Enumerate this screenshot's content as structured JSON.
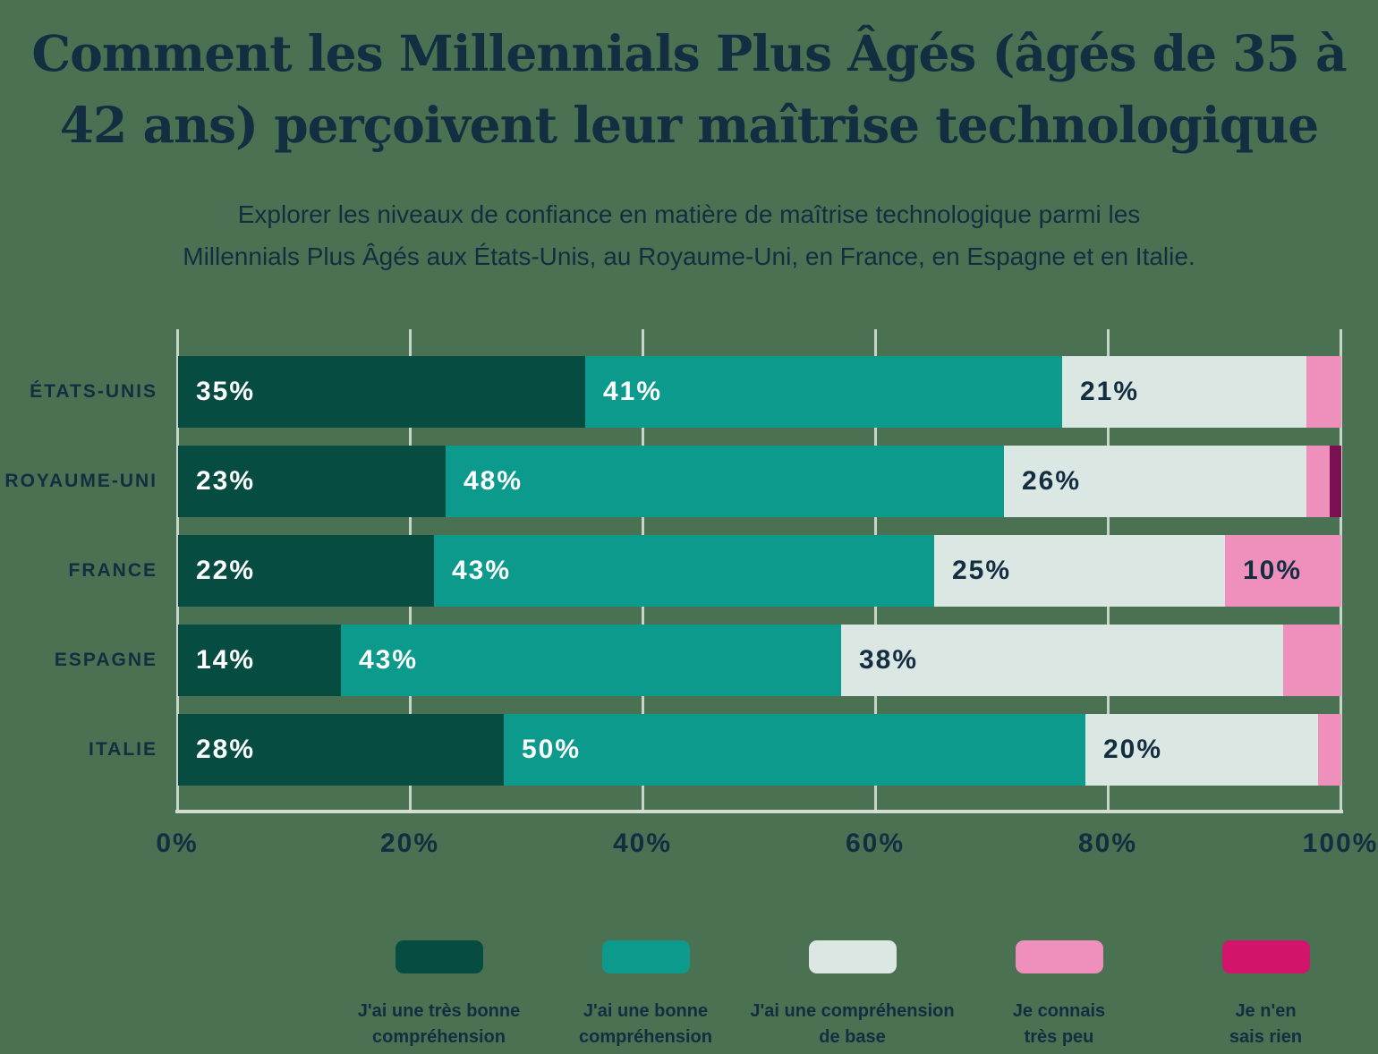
{
  "header": {
    "title_lines": [
      "Comment les Millennials Plus Âgés (âgés de 35 à",
      "42 ans) perçoivent leur maîtrise technologique"
    ],
    "subtitle_lines": [
      "Explorer les niveaux de confiance en matière de maîtrise technologique parmi les",
      "Millennials Plus Âgés aux États-Unis, au Royaume-Uni, en France, en Espagne et en Italie."
    ]
  },
  "colors": {
    "background": "#4a7152",
    "text_navy": "#122e40",
    "gridline": "#c9d3ca",
    "axis_baseline": "#d4ddd4",
    "bar_label_on_dark": "#ffffff",
    "uk_no_answer_bar_segment": "#7a1050"
  },
  "chart_data": {
    "type": "bar",
    "stacked": true,
    "orientation": "horizontal",
    "title": "Comment les Millennials Plus Âgés (âgés de 35 à 42 ans) perçoivent leur maîtrise technologique",
    "subtitle": "Explorer les niveaux de confiance en matière de maîtrise technologique parmi les Millennials Plus Âgés aux États-Unis, au Royaume-Uni, en France, en Espagne et en Italie.",
    "categories": [
      "ÉTATS-UNIS",
      "ROYAUME-UNI",
      "FRANCE",
      "ESPAGNE",
      "ITALIE"
    ],
    "series": [
      {
        "name": "J'ai une très bonne compréhension",
        "color": "#064c41",
        "label_style": "on-dark",
        "values": [
          35,
          23,
          22,
          14,
          28
        ]
      },
      {
        "name": "J'ai une bonne compréhension",
        "color": "#0b9a8b",
        "label_style": "on-dark",
        "values": [
          41,
          48,
          43,
          43,
          50
        ]
      },
      {
        "name": "J'ai une compréhension de base",
        "color": "#dbe7e3",
        "label_style": "on-light",
        "values": [
          21,
          26,
          25,
          38,
          20
        ]
      },
      {
        "name": "Je connais très peu",
        "color": "#ee8fbc",
        "label_style": "on-light",
        "values": [
          3,
          2,
          10,
          5,
          2
        ]
      },
      {
        "name": "Je n'en sais rien",
        "color": "#7a1050",
        "label_style": "on-dark",
        "values": [
          0,
          1,
          0,
          0,
          0
        ]
      }
    ],
    "value_label_suffix": "%",
    "min_labeled_value": 10,
    "x_ticks": [
      "0%",
      "20%",
      "40%",
      "60%",
      "80%",
      "100%"
    ],
    "xlim": [
      0,
      100
    ],
    "grid": true,
    "legend_position": "bottom"
  },
  "legend": [
    {
      "lines": [
        "J'ai une très bonne",
        "compréhension"
      ],
      "color": "#064c41"
    },
    {
      "lines": [
        "J'ai une bonne",
        "compréhension"
      ],
      "color": "#0b9a8b"
    },
    {
      "lines": [
        "J'ai une compréhension",
        "de base"
      ],
      "color": "#dbe7e3"
    },
    {
      "lines": [
        "Je connais",
        "très peu"
      ],
      "color": "#ee8fbc"
    },
    {
      "lines": [
        "Je n'en",
        "sais rien"
      ],
      "color": "#d2146a"
    }
  ]
}
